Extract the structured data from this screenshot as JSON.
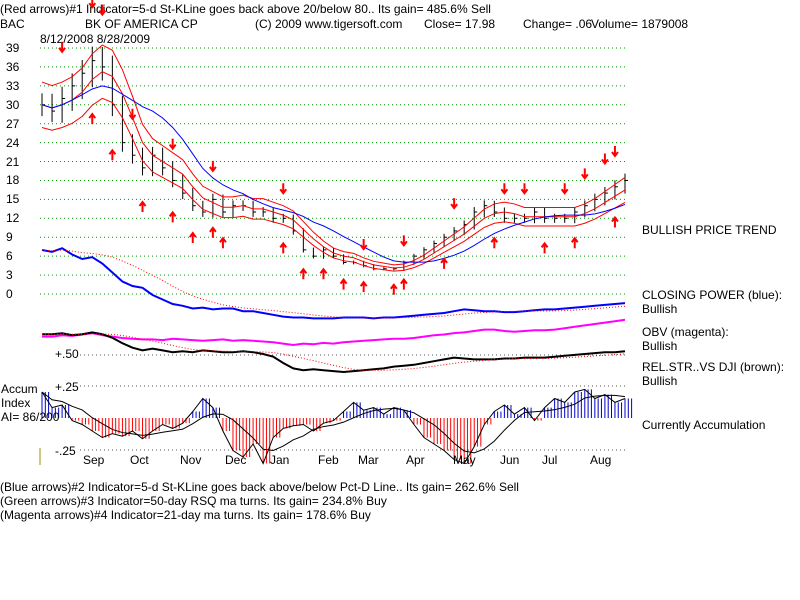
{
  "header": {
    "line1": "(Red arrows)#1 Indicator=5-d St-KLine goes back above 20/below 80.. Its gain= 485.6% Sell",
    "symbol": "BAC",
    "company": "BK OF AMERICA CP",
    "copyright": "(C) 2009 www.tigersoft.com",
    "close": "Close=  17.98",
    "change": "Change= .06",
    "volume": "Volume= 1879008",
    "date_range": "8/12/2008 8/28/2009"
  },
  "right_labels": {
    "trend": "BULLISH PRICE TREND",
    "cp": "CLOSING POWER (blue):",
    "cp_val": "Bullish",
    "obv": "OBV (magenta):",
    "obv_val": "Bullish",
    "rs": "REL.STR..VS DJI (brown):",
    "rs_val": "Bullish",
    "accum": "Currently Accumulation"
  },
  "accum": {
    "title1": "Accum",
    "title2": "Index",
    "ai": "AI= 86/200",
    "plus": "+.25",
    "minus": "-.25",
    "rs_level": "+.50"
  },
  "footer": [
    "(Blue arrows)#2 Indicator=5-d St-KLine goes back above/below Pct-D Line.. Its gain= 262.6% Sell",
    "(Green arrows)#3 Indicator=50-day RSQ ma turns. Its gain= 234.8% Buy",
    "(Magenta arrows)#4 Indicator=21-day ma turns. Its gain= 178.6% Buy"
  ],
  "colors": {
    "price": "#000000",
    "ma": "#ff0000",
    "ma50": "#0000ff",
    "cp": "#0000ff",
    "obv": "#ff00ff",
    "rs": "#000000",
    "acc_pos": "#0000cc",
    "acc_neg": "#ff0000",
    "grid": "#009900"
  },
  "chart_data": {
    "type": "line",
    "title": "BK OF AMERICA CP",
    "ylim": [
      0,
      39
    ],
    "yticks": [
      0,
      3,
      6,
      9,
      12,
      15,
      18,
      21,
      24,
      27,
      30,
      33,
      36,
      39
    ],
    "months": [
      "Sep",
      "Oct",
      "Nov",
      "Dec",
      "Jan",
      "Feb",
      "Mar",
      "Apr",
      "May",
      "Jun",
      "Jul",
      "Aug"
    ],
    "price": [
      30,
      29,
      31,
      33,
      35,
      37,
      36,
      30,
      24,
      22,
      20,
      22,
      20,
      18,
      16,
      14,
      13,
      15,
      13,
      14,
      14,
      13,
      13,
      12,
      12,
      10,
      7,
      6,
      7,
      6,
      5,
      5,
      4.5,
      4,
      4,
      4,
      5,
      6,
      7,
      8,
      9,
      10,
      11,
      13,
      14,
      13,
      12,
      12,
      12,
      13,
      12,
      12,
      12,
      13,
      14,
      15,
      16,
      17,
      18
    ],
    "closing_power": [
      80,
      78,
      82,
      75,
      70,
      72,
      65,
      55,
      45,
      40,
      38,
      30,
      25,
      20,
      18,
      15,
      16,
      14,
      15,
      15,
      12,
      12,
      10,
      8,
      6,
      5,
      5,
      4,
      4,
      4,
      5,
      5,
      5,
      4,
      5,
      5,
      6,
      7,
      8,
      9,
      10,
      12,
      14,
      13,
      12,
      12,
      11,
      11,
      12,
      13,
      14,
      14,
      15,
      16,
      17,
      18,
      19,
      20,
      21
    ],
    "obv": [
      50,
      50,
      52,
      51,
      53,
      55,
      52,
      50,
      48,
      47,
      46,
      46,
      45,
      47,
      46,
      45,
      44,
      45,
      46,
      44,
      45,
      44,
      43,
      42,
      40,
      38,
      40,
      39,
      41,
      40,
      42,
      43,
      44,
      45,
      46,
      47,
      47,
      48,
      50,
      52,
      53,
      55,
      56,
      58,
      60,
      60,
      58,
      57,
      58,
      59,
      59,
      60,
      62,
      64,
      66,
      68,
      70,
      72,
      74
    ],
    "rel_strength": [
      70,
      70,
      71,
      69,
      70,
      72,
      70,
      66,
      60,
      55,
      52,
      54,
      52,
      50,
      51,
      50,
      52,
      51,
      50,
      50,
      51,
      50,
      48,
      45,
      38,
      32,
      30,
      31,
      30,
      29,
      28,
      29,
      30,
      31,
      32,
      34,
      35,
      36,
      38,
      40,
      42,
      44,
      43,
      42,
      42,
      42,
      43,
      43,
      44,
      44,
      44,
      45,
      46,
      47,
      48,
      49,
      50,
      50,
      51
    ],
    "accum_index": [
      0.2,
      0.08,
      0.1,
      -0.02,
      -0.05,
      -0.1,
      -0.15,
      -0.12,
      -0.14,
      -0.1,
      -0.16,
      -0.1,
      -0.05,
      -0.08,
      -0.04,
      0.05,
      0.15,
      0.08,
      -0.1,
      -0.25,
      -0.3,
      -0.2,
      -0.35,
      -0.15,
      -0.08,
      -0.06,
      -0.05,
      -0.1,
      -0.04,
      -0.02,
      0.05,
      0.12,
      0.06,
      0.08,
      0.03,
      0.08,
      0.06,
      -0.05,
      -0.15,
      -0.2,
      -0.25,
      -0.32,
      -0.35,
      -0.22,
      -0.05,
      0.05,
      0.1,
      0.03,
      0.08,
      -0.02,
      0.08,
      0.15,
      0.12,
      0.2,
      0.22,
      0.15,
      0.18,
      0.12,
      0.15
    ],
    "sell_arrows": [
      2,
      5,
      6,
      9,
      13,
      17,
      24,
      32,
      36,
      41,
      46,
      48,
      52,
      54,
      56,
      57
    ],
    "buy_arrows": [
      5,
      7,
      10,
      13,
      15,
      17,
      18,
      24,
      26,
      28,
      30,
      32,
      35,
      36,
      40,
      45,
      50,
      53,
      57
    ]
  }
}
